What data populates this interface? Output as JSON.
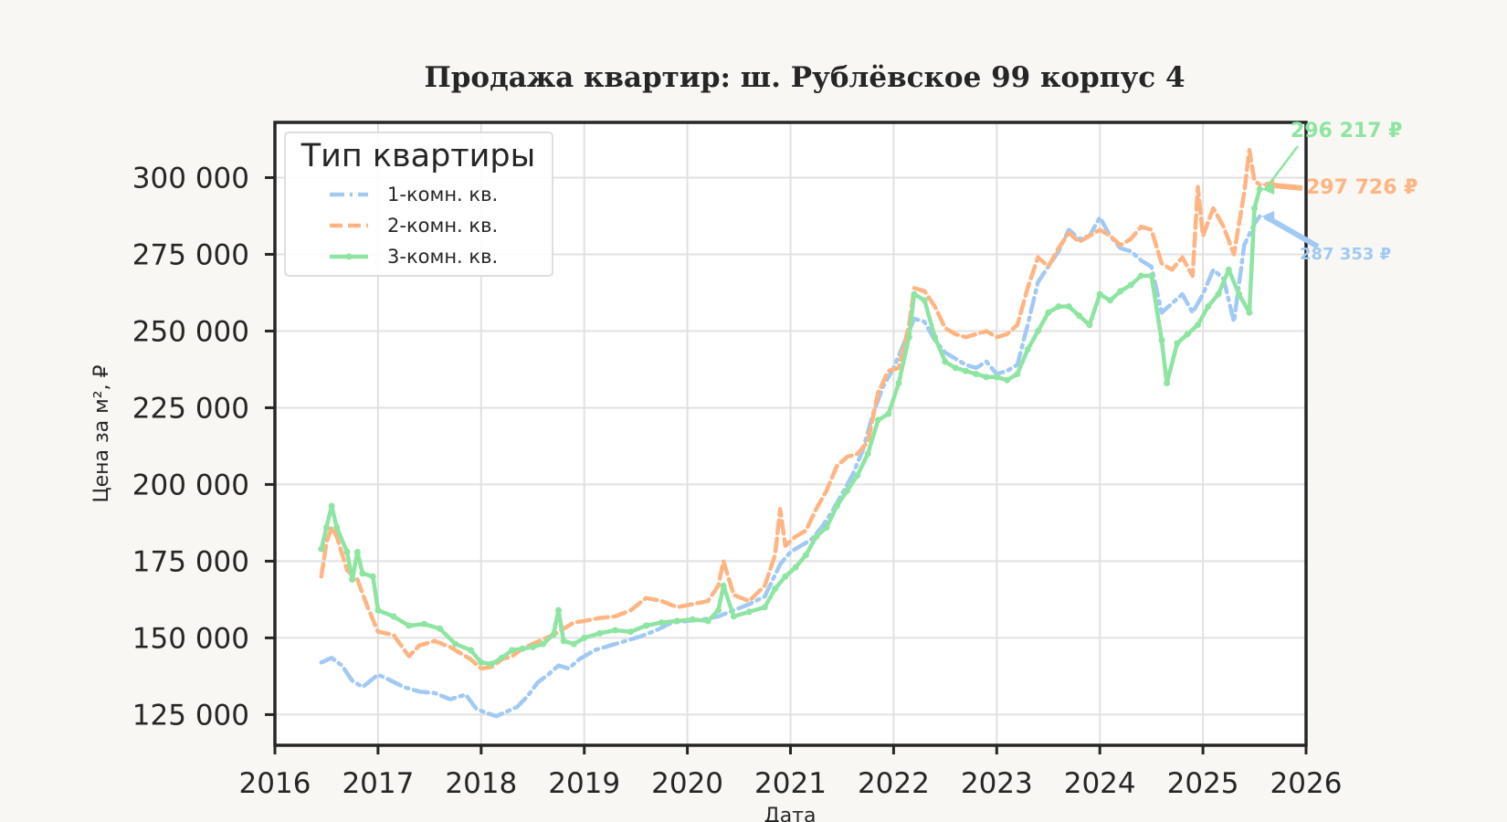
{
  "chart_data": {
    "type": "line",
    "title": "Продажа квартир: ш. Рублёвское 99 корпус 4",
    "xlabel": "Дата",
    "ylabel": "Цена за м², ₽",
    "xlim": [
      2016,
      2026
    ],
    "ylim": [
      115000,
      318000
    ],
    "x_ticks": [
      2016,
      2017,
      2018,
      2019,
      2020,
      2021,
      2022,
      2023,
      2024,
      2025,
      2026
    ],
    "y_ticks": [
      125000,
      150000,
      175000,
      200000,
      225000,
      250000,
      275000,
      300000
    ],
    "y_tick_labels": [
      "125 000",
      "150 000",
      "175 000",
      "200 000",
      "225 000",
      "250 000",
      "275 000",
      "300 000"
    ],
    "grid": true,
    "legend": {
      "title": "Тип квартиры",
      "position": "top-left"
    },
    "colors": {
      "1-комн. кв.": "#a1c9f4",
      "2-комн. кв.": "#ffb482",
      "3-комн. кв.": "#8de5a1"
    },
    "series": [
      {
        "name": "1-комн. кв.",
        "style": "dashdot",
        "end_label": "287 353 ₽",
        "points": [
          [
            2016.45,
            142000
          ],
          [
            2016.55,
            143500
          ],
          [
            2016.65,
            141000
          ],
          [
            2016.75,
            136000
          ],
          [
            2016.85,
            134000
          ],
          [
            2017.0,
            138000
          ],
          [
            2017.1,
            136500
          ],
          [
            2017.25,
            134000
          ],
          [
            2017.4,
            132500
          ],
          [
            2017.55,
            132000
          ],
          [
            2017.7,
            130000
          ],
          [
            2017.85,
            131500
          ],
          [
            2017.95,
            127000
          ],
          [
            2018.05,
            125500
          ],
          [
            2018.15,
            124500
          ],
          [
            2018.25,
            126000
          ],
          [
            2018.35,
            127500
          ],
          [
            2018.45,
            131000
          ],
          [
            2018.55,
            135500
          ],
          [
            2018.65,
            138000
          ],
          [
            2018.75,
            141000
          ],
          [
            2018.85,
            140000
          ],
          [
            2018.95,
            143000
          ],
          [
            2019.1,
            146000
          ],
          [
            2019.25,
            147500
          ],
          [
            2019.4,
            149000
          ],
          [
            2019.55,
            150500
          ],
          [
            2019.7,
            152500
          ],
          [
            2019.85,
            155000
          ],
          [
            2020.0,
            155500
          ],
          [
            2020.15,
            156000
          ],
          [
            2020.3,
            157000
          ],
          [
            2020.45,
            159000
          ],
          [
            2020.6,
            161000
          ],
          [
            2020.75,
            163500
          ],
          [
            2020.9,
            174000
          ],
          [
            2021.0,
            178000
          ],
          [
            2021.1,
            180000
          ],
          [
            2021.2,
            182000
          ],
          [
            2021.3,
            186000
          ],
          [
            2021.4,
            191000
          ],
          [
            2021.5,
            197000
          ],
          [
            2021.6,
            203000
          ],
          [
            2021.7,
            211000
          ],
          [
            2021.8,
            223000
          ],
          [
            2021.9,
            232000
          ],
          [
            2022.0,
            238000
          ],
          [
            2022.1,
            246000
          ],
          [
            2022.2,
            254000
          ],
          [
            2022.3,
            253000
          ],
          [
            2022.4,
            247000
          ],
          [
            2022.5,
            243000
          ],
          [
            2022.6,
            241000
          ],
          [
            2022.7,
            239000
          ],
          [
            2022.8,
            238000
          ],
          [
            2022.9,
            240000
          ],
          [
            2023.0,
            236000
          ],
          [
            2023.1,
            237000
          ],
          [
            2023.2,
            239000
          ],
          [
            2023.3,
            252000
          ],
          [
            2023.4,
            266000
          ],
          [
            2023.5,
            271000
          ],
          [
            2023.6,
            276000
          ],
          [
            2023.7,
            283000
          ],
          [
            2023.8,
            280000
          ],
          [
            2023.9,
            281000
          ],
          [
            2024.0,
            287000
          ],
          [
            2024.1,
            281000
          ],
          [
            2024.2,
            277000
          ],
          [
            2024.3,
            276000
          ],
          [
            2024.4,
            273000
          ],
          [
            2024.5,
            271000
          ],
          [
            2024.6,
            256000
          ],
          [
            2024.7,
            259000
          ],
          [
            2024.8,
            262000
          ],
          [
            2024.9,
            256000
          ],
          [
            2025.0,
            262000
          ],
          [
            2025.1,
            270000
          ],
          [
            2025.2,
            267000
          ],
          [
            2025.3,
            253000
          ],
          [
            2025.4,
            278000
          ],
          [
            2025.5,
            285000
          ],
          [
            2025.55,
            287353
          ]
        ]
      },
      {
        "name": "2-комн. кв.",
        "style": "dashed",
        "end_label": "297 726 ₽",
        "points": [
          [
            2016.45,
            170000
          ],
          [
            2016.5,
            181000
          ],
          [
            2016.55,
            186000
          ],
          [
            2016.6,
            183000
          ],
          [
            2016.7,
            172000
          ],
          [
            2016.8,
            169000
          ],
          [
            2016.9,
            160000
          ],
          [
            2017.0,
            152000
          ],
          [
            2017.15,
            151000
          ],
          [
            2017.3,
            144000
          ],
          [
            2017.4,
            147500
          ],
          [
            2017.55,
            149000
          ],
          [
            2017.7,
            147000
          ],
          [
            2017.8,
            145000
          ],
          [
            2017.9,
            143000
          ],
          [
            2018.0,
            140000
          ],
          [
            2018.1,
            140500
          ],
          [
            2018.2,
            143000
          ],
          [
            2018.3,
            144000
          ],
          [
            2018.4,
            146500
          ],
          [
            2018.5,
            148000
          ],
          [
            2018.6,
            149500
          ],
          [
            2018.7,
            151000
          ],
          [
            2018.8,
            153000
          ],
          [
            2018.9,
            155000
          ],
          [
            2019.0,
            155500
          ],
          [
            2019.15,
            156500
          ],
          [
            2019.3,
            157000
          ],
          [
            2019.45,
            159000
          ],
          [
            2019.6,
            163000
          ],
          [
            2019.75,
            162000
          ],
          [
            2019.9,
            160000
          ],
          [
            2020.05,
            161000
          ],
          [
            2020.2,
            162000
          ],
          [
            2020.3,
            167000
          ],
          [
            2020.35,
            175000
          ],
          [
            2020.45,
            164000
          ],
          [
            2020.6,
            162000
          ],
          [
            2020.75,
            167000
          ],
          [
            2020.85,
            177000
          ],
          [
            2020.9,
            192000
          ],
          [
            2020.95,
            180000
          ],
          [
            2021.05,
            183000
          ],
          [
            2021.15,
            185000
          ],
          [
            2021.25,
            192000
          ],
          [
            2021.35,
            198000
          ],
          [
            2021.45,
            206000
          ],
          [
            2021.55,
            209000
          ],
          [
            2021.65,
            210000
          ],
          [
            2021.75,
            214000
          ],
          [
            2021.85,
            230000
          ],
          [
            2021.95,
            237000
          ],
          [
            2022.05,
            238000
          ],
          [
            2022.15,
            252000
          ],
          [
            2022.2,
            264000
          ],
          [
            2022.3,
            263000
          ],
          [
            2022.4,
            258000
          ],
          [
            2022.5,
            251000
          ],
          [
            2022.6,
            249000
          ],
          [
            2022.7,
            248000
          ],
          [
            2022.8,
            249000
          ],
          [
            2022.9,
            250000
          ],
          [
            2023.0,
            248000
          ],
          [
            2023.1,
            249000
          ],
          [
            2023.2,
            252000
          ],
          [
            2023.3,
            264000
          ],
          [
            2023.4,
            274000
          ],
          [
            2023.5,
            271000
          ],
          [
            2023.6,
            277000
          ],
          [
            2023.7,
            282000
          ],
          [
            2023.8,
            279000
          ],
          [
            2023.9,
            281000
          ],
          [
            2024.0,
            283000
          ],
          [
            2024.1,
            281000
          ],
          [
            2024.2,
            278000
          ],
          [
            2024.3,
            280000
          ],
          [
            2024.4,
            284000
          ],
          [
            2024.5,
            283000
          ],
          [
            2024.6,
            272000
          ],
          [
            2024.7,
            270000
          ],
          [
            2024.8,
            274000
          ],
          [
            2024.9,
            268000
          ],
          [
            2024.95,
            297000
          ],
          [
            2025.0,
            281000
          ],
          [
            2025.1,
            290000
          ],
          [
            2025.2,
            284000
          ],
          [
            2025.3,
            275000
          ],
          [
            2025.4,
            295000
          ],
          [
            2025.45,
            309000
          ],
          [
            2025.5,
            299000
          ],
          [
            2025.55,
            297726
          ]
        ]
      },
      {
        "name": "3-комн. кв.",
        "style": "solid-marker",
        "end_label": "296 217 ₽",
        "points": [
          [
            2016.45,
            179000
          ],
          [
            2016.5,
            186000
          ],
          [
            2016.55,
            193000
          ],
          [
            2016.6,
            186000
          ],
          [
            2016.7,
            178000
          ],
          [
            2016.75,
            169000
          ],
          [
            2016.8,
            178000
          ],
          [
            2016.85,
            171000
          ],
          [
            2016.95,
            170000
          ],
          [
            2017.0,
            159000
          ],
          [
            2017.15,
            157000
          ],
          [
            2017.3,
            154000
          ],
          [
            2017.45,
            154500
          ],
          [
            2017.6,
            153000
          ],
          [
            2017.75,
            148000
          ],
          [
            2017.9,
            146000
          ],
          [
            2018.0,
            142000
          ],
          [
            2018.1,
            141500
          ],
          [
            2018.2,
            143500
          ],
          [
            2018.3,
            146000
          ],
          [
            2018.4,
            146500
          ],
          [
            2018.5,
            147000
          ],
          [
            2018.6,
            148000
          ],
          [
            2018.7,
            151000
          ],
          [
            2018.75,
            159000
          ],
          [
            2018.8,
            149000
          ],
          [
            2018.9,
            148000
          ],
          [
            2019.0,
            150000
          ],
          [
            2019.15,
            151500
          ],
          [
            2019.3,
            152500
          ],
          [
            2019.45,
            152000
          ],
          [
            2019.6,
            154000
          ],
          [
            2019.75,
            155000
          ],
          [
            2019.9,
            155500
          ],
          [
            2020.05,
            156000
          ],
          [
            2020.2,
            155500
          ],
          [
            2020.3,
            159000
          ],
          [
            2020.35,
            167000
          ],
          [
            2020.45,
            157000
          ],
          [
            2020.6,
            158500
          ],
          [
            2020.75,
            160000
          ],
          [
            2020.85,
            166000
          ],
          [
            2020.95,
            170000
          ],
          [
            2021.05,
            173000
          ],
          [
            2021.15,
            177000
          ],
          [
            2021.25,
            183000
          ],
          [
            2021.35,
            186000
          ],
          [
            2021.45,
            193000
          ],
          [
            2021.55,
            198000
          ],
          [
            2021.65,
            203000
          ],
          [
            2021.75,
            210000
          ],
          [
            2021.85,
            221000
          ],
          [
            2021.95,
            223000
          ],
          [
            2022.05,
            233000
          ],
          [
            2022.15,
            248000
          ],
          [
            2022.2,
            262000
          ],
          [
            2022.3,
            260000
          ],
          [
            2022.4,
            248000
          ],
          [
            2022.5,
            240000
          ],
          [
            2022.6,
            238000
          ],
          [
            2022.7,
            237000
          ],
          [
            2022.8,
            236000
          ],
          [
            2022.9,
            235000
          ],
          [
            2023.0,
            235000
          ],
          [
            2023.1,
            234000
          ],
          [
            2023.2,
            236000
          ],
          [
            2023.3,
            244000
          ],
          [
            2023.4,
            250000
          ],
          [
            2023.5,
            256000
          ],
          [
            2023.6,
            258000
          ],
          [
            2023.7,
            258000
          ],
          [
            2023.8,
            255000
          ],
          [
            2023.9,
            252000
          ],
          [
            2024.0,
            262000
          ],
          [
            2024.1,
            260000
          ],
          [
            2024.2,
            263000
          ],
          [
            2024.3,
            265000
          ],
          [
            2024.4,
            268000
          ],
          [
            2024.5,
            268000
          ],
          [
            2024.6,
            247000
          ],
          [
            2024.65,
            233000
          ],
          [
            2024.75,
            246000
          ],
          [
            2024.85,
            249000
          ],
          [
            2024.95,
            252000
          ],
          [
            2025.05,
            258000
          ],
          [
            2025.15,
            262000
          ],
          [
            2025.25,
            270000
          ],
          [
            2025.35,
            262000
          ],
          [
            2025.45,
            256000
          ],
          [
            2025.5,
            290000
          ],
          [
            2025.55,
            296217
          ]
        ]
      }
    ]
  }
}
